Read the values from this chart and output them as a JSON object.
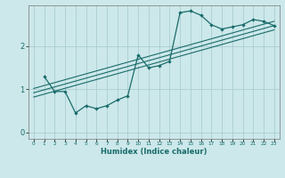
{
  "xlabel": "Humidex (Indice chaleur)",
  "ylabel": "",
  "background_color": "#cce8ea",
  "grid_color": "#aacdd2",
  "line_color": "#1a6b6b",
  "xlim": [
    -0.5,
    23.5
  ],
  "ylim": [
    -0.15,
    2.95
  ],
  "yticks": [
    0,
    1,
    2
  ],
  "xticks": [
    0,
    1,
    2,
    3,
    4,
    5,
    6,
    7,
    8,
    9,
    10,
    11,
    12,
    13,
    14,
    15,
    16,
    17,
    18,
    19,
    20,
    21,
    22,
    23
  ],
  "curve_x": [
    1,
    2,
    3,
    4,
    5,
    6,
    7,
    8,
    9,
    10,
    11,
    12,
    13,
    14,
    15,
    16,
    17,
    18,
    19,
    20,
    21,
    22,
    23
  ],
  "curve_y": [
    1.3,
    0.95,
    0.95,
    0.45,
    0.62,
    0.55,
    0.62,
    0.75,
    0.85,
    1.8,
    1.5,
    1.55,
    1.65,
    2.78,
    2.82,
    2.72,
    2.5,
    2.4,
    2.45,
    2.5,
    2.62,
    2.58,
    2.48
  ],
  "line1_x": [
    0,
    23
  ],
  "line1_y": [
    0.82,
    2.38
  ],
  "line2_x": [
    0,
    23
  ],
  "line2_y": [
    0.92,
    2.48
  ],
  "line3_x": [
    0,
    23
  ],
  "line3_y": [
    1.02,
    2.58
  ]
}
